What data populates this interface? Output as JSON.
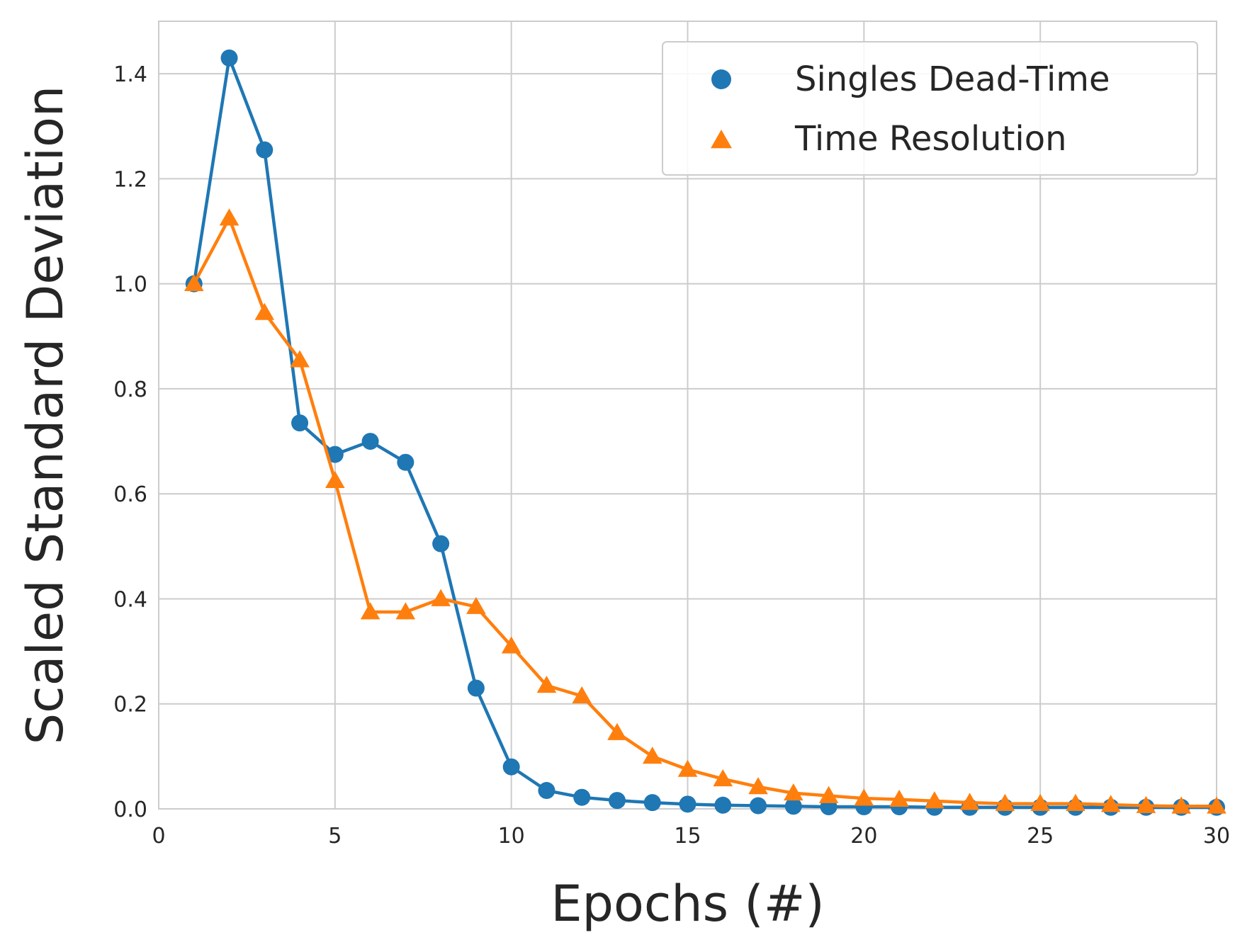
{
  "chart_data": {
    "type": "line",
    "title": "",
    "xlabel": "Epochs (#)",
    "ylabel": "Scaled Standard Deviation",
    "xlim": [
      0,
      30
    ],
    "ylim": [
      0,
      1.5
    ],
    "xticks": [
      0,
      5,
      10,
      15,
      20,
      25,
      30
    ],
    "yticks": [
      0.0,
      0.2,
      0.4,
      0.6,
      0.8,
      1.0,
      1.2,
      1.4
    ],
    "xtick_labels": [
      "0",
      "5",
      "10",
      "15",
      "20",
      "25",
      "30"
    ],
    "ytick_labels": [
      "0.0",
      "0.2",
      "0.4",
      "0.6",
      "0.8",
      "1.0",
      "1.2",
      "1.4"
    ],
    "grid": true,
    "legend_position": "top-right",
    "series": [
      {
        "name": "Singles Dead-Time",
        "marker": "circle",
        "color": "#1f77b4",
        "x": [
          1,
          2,
          3,
          4,
          5,
          6,
          7,
          8,
          9,
          10,
          11,
          12,
          13,
          14,
          15,
          16,
          17,
          18,
          19,
          20,
          21,
          22,
          23,
          24,
          25,
          26,
          27,
          28,
          29,
          30
        ],
        "values": [
          1.0,
          1.43,
          1.255,
          0.735,
          0.675,
          0.7,
          0.66,
          0.505,
          0.23,
          0.08,
          0.035,
          0.022,
          0.016,
          0.012,
          0.009,
          0.007,
          0.006,
          0.005,
          0.004,
          0.004,
          0.004,
          0.003,
          0.003,
          0.003,
          0.003,
          0.003,
          0.003,
          0.003,
          0.003,
          0.003
        ]
      },
      {
        "name": "Time Resolution",
        "marker": "triangle",
        "color": "#ff7f0e",
        "x": [
          1,
          2,
          3,
          4,
          5,
          6,
          7,
          8,
          9,
          10,
          11,
          12,
          13,
          14,
          15,
          16,
          17,
          18,
          19,
          20,
          21,
          22,
          23,
          24,
          25,
          26,
          27,
          28,
          29,
          30
        ],
        "values": [
          1.0,
          1.125,
          0.945,
          0.855,
          0.625,
          0.375,
          0.375,
          0.4,
          0.385,
          0.31,
          0.235,
          0.215,
          0.145,
          0.1,
          0.075,
          0.057,
          0.042,
          0.03,
          0.025,
          0.02,
          0.018,
          0.015,
          0.012,
          0.01,
          0.01,
          0.01,
          0.008,
          0.006,
          0.005,
          0.005
        ]
      }
    ]
  }
}
